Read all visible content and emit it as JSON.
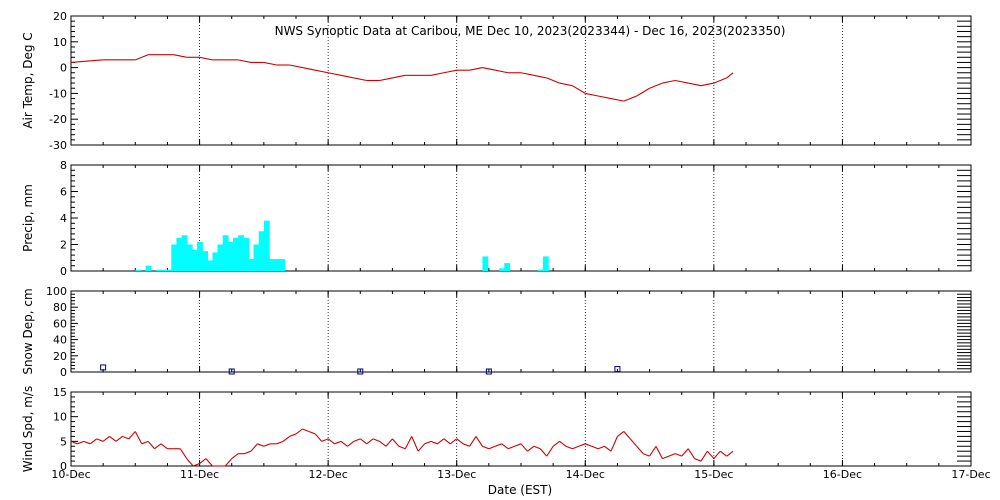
{
  "title": "NWS Synoptic Data at Caribou, ME   Dec 10, 2023(2023344) - Dec 16, 2023(2023350)",
  "xlabel": "Date (EST)",
  "x_ticks": [
    "10-Dec",
    "11-Dec",
    "12-Dec",
    "13-Dec",
    "14-Dec",
    "15-Dec",
    "16-Dec",
    "17-Dec"
  ],
  "chart_data": [
    {
      "type": "line",
      "ylabel": "Air Temp, Deg C",
      "x_range_days": [
        0,
        7
      ],
      "ylim": [
        -30,
        20
      ],
      "y_ticks": [
        -30,
        -20,
        -10,
        0,
        10,
        20
      ],
      "color": "#d00000",
      "x": [
        0,
        0.25,
        0.5,
        0.6,
        0.7,
        0.8,
        0.9,
        1.0,
        1.1,
        1.2,
        1.3,
        1.4,
        1.5,
        1.6,
        1.7,
        1.8,
        1.9,
        2.0,
        2.1,
        2.2,
        2.3,
        2.4,
        2.5,
        2.6,
        2.7,
        2.8,
        2.9,
        3.0,
        3.1,
        3.2,
        3.3,
        3.4,
        3.5,
        3.6,
        3.7,
        3.8,
        3.9,
        4.0,
        4.1,
        4.2,
        4.3,
        4.4,
        4.5,
        4.6,
        4.7,
        4.8,
        4.9,
        5.0,
        5.1,
        5.15
      ],
      "values": [
        2,
        3,
        3,
        5,
        5,
        5,
        4,
        4,
        3,
        3,
        3,
        2,
        2,
        1,
        1,
        0,
        -1,
        -2,
        -3,
        -4,
        -5,
        -5,
        -4,
        -3,
        -3,
        -3,
        -2,
        -1,
        -1,
        0,
        -1,
        -2,
        -2,
        -3,
        -4,
        -6,
        -7,
        -10,
        -11,
        -12,
        -13,
        -11,
        -8,
        -6,
        -5,
        -6,
        -7,
        -6,
        -4,
        -2
      ]
    },
    {
      "type": "bar",
      "ylabel": "Precip, mm",
      "x_range_days": [
        0,
        7
      ],
      "ylim": [
        0,
        8
      ],
      "y_ticks": [
        0,
        2,
        4,
        6,
        8
      ],
      "color": "#00ffff",
      "x": [
        0.5,
        0.58,
        0.66,
        0.7,
        0.74,
        0.78,
        0.82,
        0.86,
        0.9,
        0.94,
        0.98,
        1.02,
        1.06,
        1.1,
        1.14,
        1.18,
        1.22,
        1.26,
        1.3,
        1.34,
        1.38,
        1.42,
        1.46,
        1.5,
        1.54,
        1.58,
        1.62,
        3.2,
        3.33,
        3.37,
        3.63,
        3.67
      ],
      "values": [
        0.1,
        0.4,
        0.1,
        0.1,
        0.1,
        2.0,
        2.5,
        2.7,
        2.0,
        1.6,
        2.2,
        1.5,
        0.8,
        1.4,
        2.0,
        2.7,
        2.2,
        2.5,
        2.7,
        2.5,
        0.9,
        2.0,
        3.0,
        3.8,
        0.9,
        0.9,
        0.9,
        1.1,
        0.2,
        0.6,
        0.1,
        1.1
      ]
    },
    {
      "type": "scatter",
      "ylabel": "Snow Dep, cm",
      "x_range_days": [
        0,
        7
      ],
      "ylim": [
        0,
        100
      ],
      "y_ticks": [
        0,
        20,
        40,
        60,
        80,
        100
      ],
      "color": "#000080",
      "x": [
        0.25,
        1.25,
        2.25,
        3.25,
        4.25
      ],
      "values": [
        5,
        0,
        0,
        0,
        3
      ]
    },
    {
      "type": "line",
      "ylabel": "Wind Spd, m/s",
      "x_range_days": [
        0,
        7
      ],
      "ylim": [
        0,
        15
      ],
      "y_ticks": [
        0,
        5,
        10,
        15
      ],
      "color": "#d00000",
      "x": [
        0,
        0.05,
        0.1,
        0.15,
        0.2,
        0.25,
        0.3,
        0.35,
        0.4,
        0.45,
        0.5,
        0.55,
        0.6,
        0.65,
        0.7,
        0.75,
        0.8,
        0.85,
        0.9,
        0.95,
        1.0,
        1.05,
        1.1,
        1.15,
        1.2,
        1.25,
        1.3,
        1.35,
        1.4,
        1.45,
        1.5,
        1.55,
        1.6,
        1.65,
        1.7,
        1.75,
        1.8,
        1.85,
        1.9,
        1.95,
        2.0,
        2.05,
        2.1,
        2.15,
        2.2,
        2.25,
        2.3,
        2.35,
        2.4,
        2.45,
        2.5,
        2.55,
        2.6,
        2.65,
        2.7,
        2.75,
        2.8,
        2.85,
        2.9,
        2.95,
        3.0,
        3.05,
        3.1,
        3.15,
        3.2,
        3.25,
        3.3,
        3.35,
        3.4,
        3.45,
        3.5,
        3.55,
        3.6,
        3.65,
        3.7,
        3.75,
        3.8,
        3.85,
        3.9,
        3.95,
        4.0,
        4.05,
        4.1,
        4.15,
        4.2,
        4.25,
        4.3,
        4.35,
        4.4,
        4.45,
        4.5,
        4.55,
        4.6,
        4.65,
        4.7,
        4.75,
        4.8,
        4.85,
        4.9,
        4.95,
        5.0,
        5.05,
        5.1,
        5.15
      ],
      "values": [
        5,
        4.5,
        5,
        4.5,
        5.5,
        5,
        6,
        5,
        6,
        5.5,
        7,
        4.5,
        5,
        3.5,
        4.5,
        3.5,
        3.5,
        3.5,
        1.5,
        0,
        0.5,
        1.5,
        0,
        0,
        0,
        1.5,
        2.5,
        2.5,
        3,
        4.5,
        4,
        4.5,
        4.5,
        5,
        6,
        6.5,
        7.5,
        7,
        6.5,
        5,
        5.5,
        4.5,
        5,
        4,
        5,
        5.5,
        4.5,
        5.5,
        5,
        4,
        5.5,
        4,
        3.5,
        6,
        3,
        4.5,
        5,
        4.5,
        5.5,
        4.5,
        5.5,
        4.5,
        4,
        6,
        4,
        3.5,
        4,
        4.5,
        3.5,
        4,
        4.5,
        3,
        4,
        3.5,
        2,
        4,
        5,
        4,
        3.5,
        4,
        4.5,
        4,
        3.5,
        4,
        3,
        6,
        7,
        5.5,
        4,
        2.5,
        2,
        4,
        1.5,
        2,
        2.5,
        2,
        3.5,
        1.5,
        1,
        3,
        1.5,
        3,
        2,
        3
      ]
    }
  ]
}
